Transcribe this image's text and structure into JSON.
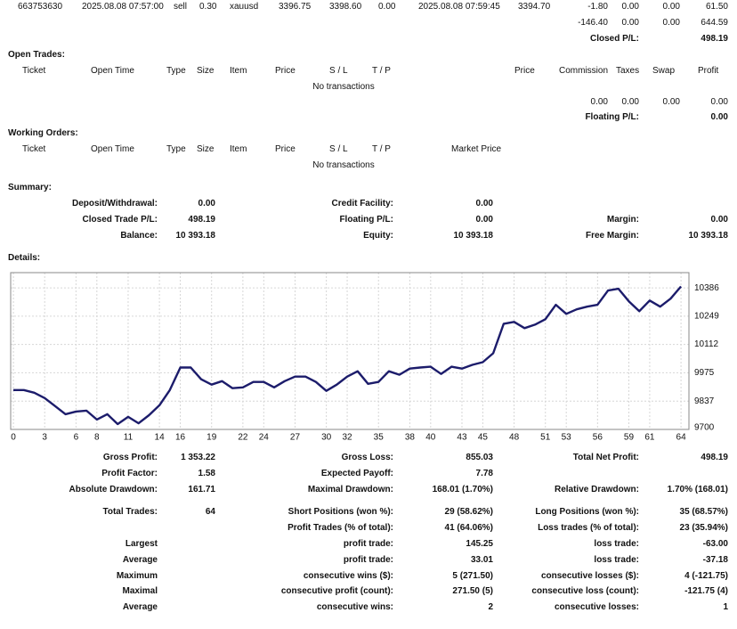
{
  "closed_trades": {
    "last_trade": [
      "663753630",
      "2025.08.08 07:57:00",
      "sell",
      "0.30",
      "xauusd",
      "3396.75",
      "3398.60",
      "0.00",
      "2025.08.08 07:59:45",
      "3394.70",
      "-1.80",
      "0.00",
      "0.00",
      "61.50"
    ],
    "totals": [
      "-146.40",
      "0.00",
      "0.00",
      "644.59"
    ],
    "closed_pl": {
      "label": "Closed P/L:",
      "value": "498.19"
    }
  },
  "open_trades": {
    "title": "Open Trades:",
    "headers": [
      "Ticket",
      "Open Time",
      "Type",
      "Size",
      "Item",
      "Price",
      "S / L",
      "T / P",
      "Price",
      "Commission",
      "Taxes",
      "Swap",
      "Profit"
    ],
    "empty": "No transactions",
    "totals": [
      "0.00",
      "0.00",
      "0.00",
      "0.00"
    ],
    "floating_pl": {
      "label": "Floating P/L:",
      "value": "0.00"
    }
  },
  "working_orders": {
    "title": "Working Orders:",
    "headers": [
      "Ticket",
      "Open Time",
      "Type",
      "Size",
      "Item",
      "Price",
      "S / L",
      "T / P",
      "Market Price"
    ],
    "empty": "No transactions"
  },
  "summary": {
    "title": "Summary:",
    "rows": [
      {
        "left": [
          "Deposit/Withdrawal:",
          "0.00"
        ],
        "middle": [
          "Credit Facility:",
          "0.00"
        ]
      },
      {
        "left": [
          "Closed Trade P/L:",
          "498.19"
        ],
        "middle": [
          "Floating P/L:",
          "0.00"
        ],
        "right": [
          "Margin:",
          "0.00"
        ]
      },
      {
        "left": [
          "Balance:",
          "10 393.18"
        ],
        "middle": [
          "Equity:",
          "10 393.18"
        ],
        "right": [
          "Free Margin:",
          "10 393.18"
        ]
      }
    ]
  },
  "details": {
    "title": "Details:"
  },
  "chart_data": {
    "type": "line",
    "x": [
      0,
      1,
      2,
      3,
      4,
      5,
      6,
      7,
      8,
      9,
      10,
      11,
      12,
      13,
      14,
      15,
      16,
      17,
      18,
      19,
      20,
      21,
      22,
      23,
      24,
      25,
      26,
      27,
      28,
      29,
      30,
      31,
      32,
      33,
      34,
      35,
      36,
      37,
      38,
      39,
      40,
      41,
      42,
      43,
      44,
      45,
      46,
      47,
      48,
      49,
      50,
      51,
      52,
      53,
      54,
      55,
      56,
      57,
      58,
      59,
      60,
      61,
      62,
      63,
      64
    ],
    "series": [
      {
        "color": "#1c1c6b",
        "values": [
          9891,
          9891,
          9878,
          9852,
          9813,
          9774,
          9787,
          9791,
          9748,
          9774,
          9726,
          9761,
          9730,
          9769,
          9817,
          9891,
          10000,
          10000,
          9943,
          9917,
          9934,
          9900,
          9904,
          9930,
          9930,
          9904,
          9934,
          9956,
          9956,
          9930,
          9887,
          9917,
          9956,
          9982,
          9921,
          9930,
          9982,
          9965,
          9995,
          10000,
          10004,
          9969,
          10004,
          9995,
          10013,
          10026,
          10069,
          10212,
          10221,
          10191,
          10208,
          10234,
          10304,
          10260,
          10282,
          10295,
          10304,
          10373,
          10382,
          10321,
          10273,
          10325,
          10295,
          10334,
          10393
        ]
      }
    ],
    "xlim": [
      -0.26,
      64.76
    ],
    "ylim": [
      9700,
      10460
    ],
    "xticks": [
      0,
      3,
      6,
      8,
      11,
      14,
      16,
      19,
      22,
      24,
      27,
      30,
      32,
      35,
      38,
      40,
      43,
      45,
      48,
      51,
      53,
      56,
      59,
      61,
      64
    ],
    "yticks": [
      9700,
      9837,
      9975,
      10112,
      10249,
      10386
    ],
    "grid": true
  },
  "stats": {
    "rows": [
      {
        "left": [
          "Gross Profit:",
          "1 353.22"
        ],
        "middle": [
          "Gross Loss:",
          "855.03"
        ],
        "right": [
          "Total Net Profit:",
          "498.19"
        ]
      },
      {
        "left": [
          "Profit Factor:",
          "1.58"
        ],
        "middle": [
          "Expected Payoff:",
          "7.78"
        ]
      },
      {
        "left": [
          "Absolute Drawdown:",
          "161.71"
        ],
        "middle": [
          "Maximal Drawdown:",
          "168.01 (1.70%)"
        ],
        "right": [
          "Relative Drawdown:",
          "1.70% (168.01)"
        ]
      },
      {
        "left": [
          "Total Trades:",
          "64"
        ],
        "middle": [
          "Short Positions (won %):",
          "29 (58.62%)"
        ],
        "right": [
          "Long Positions (won %):",
          "35 (68.57%)"
        ]
      },
      {
        "middle": [
          "Profit Trades (% of total):",
          "41 (64.06%)"
        ],
        "right": [
          "Loss trades (% of total):",
          "23 (35.94%)"
        ]
      },
      {
        "left": [
          "Largest"
        ],
        "middle": [
          "profit trade:",
          "145.25"
        ],
        "right": [
          "loss trade:",
          "-63.00"
        ]
      },
      {
        "left": [
          "Average"
        ],
        "middle": [
          "profit trade:",
          "33.01"
        ],
        "right": [
          "loss trade:",
          "-37.18"
        ]
      },
      {
        "left": [
          "Maximum"
        ],
        "middle": [
          "consecutive wins ($):",
          "5 (271.50)"
        ],
        "right": [
          "consecutive losses ($):",
          "4 (-121.75)"
        ]
      },
      {
        "left": [
          "Maximal"
        ],
        "middle": [
          "consecutive profit (count):",
          "271.50 (5)"
        ],
        "right": [
          "consecutive loss (count):",
          "-121.75 (4)"
        ]
      },
      {
        "left": [
          "Average"
        ],
        "middle": [
          "consecutive wins:",
          "2"
        ],
        "right": [
          "consecutive losses:",
          "1"
        ]
      }
    ]
  }
}
